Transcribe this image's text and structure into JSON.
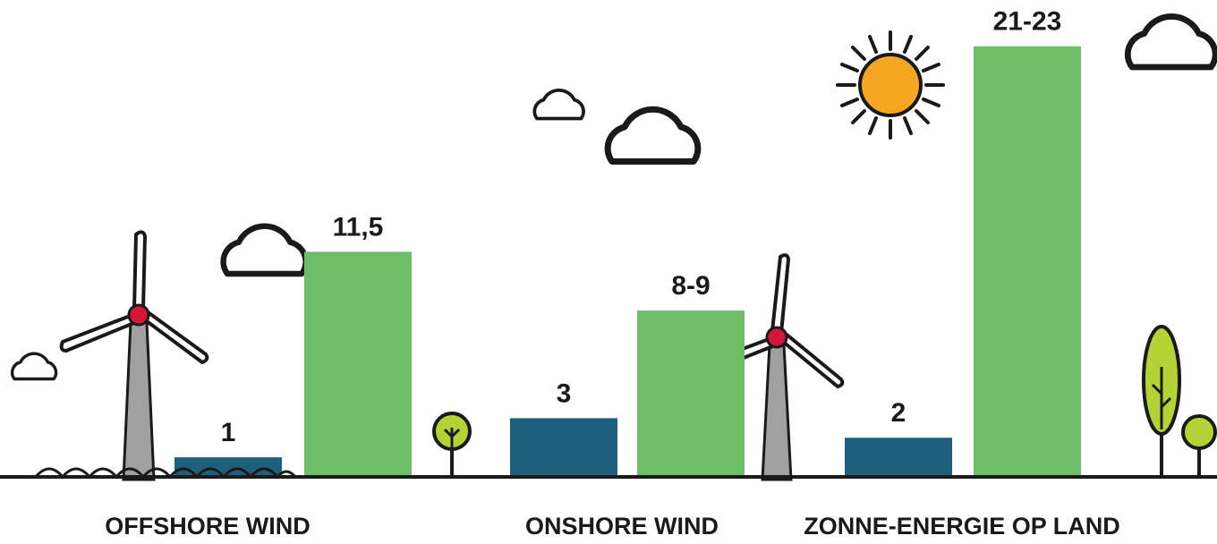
{
  "chart_data": {
    "type": "bar",
    "categories": [
      "OFFSHORE WIND",
      "ONSHORE WIND",
      "ZONNE-ENERGIE OP LAND"
    ],
    "series": [
      {
        "color": "#1d5f7d",
        "values": [
          1,
          3,
          2
        ]
      },
      {
        "color": "#6dbd69",
        "values": [
          11.5,
          8.5,
          22
        ],
        "value_labels": [
          "11,5",
          "8-9",
          "21-23"
        ]
      }
    ],
    "ylim": [
      0,
      24
    ]
  }
}
